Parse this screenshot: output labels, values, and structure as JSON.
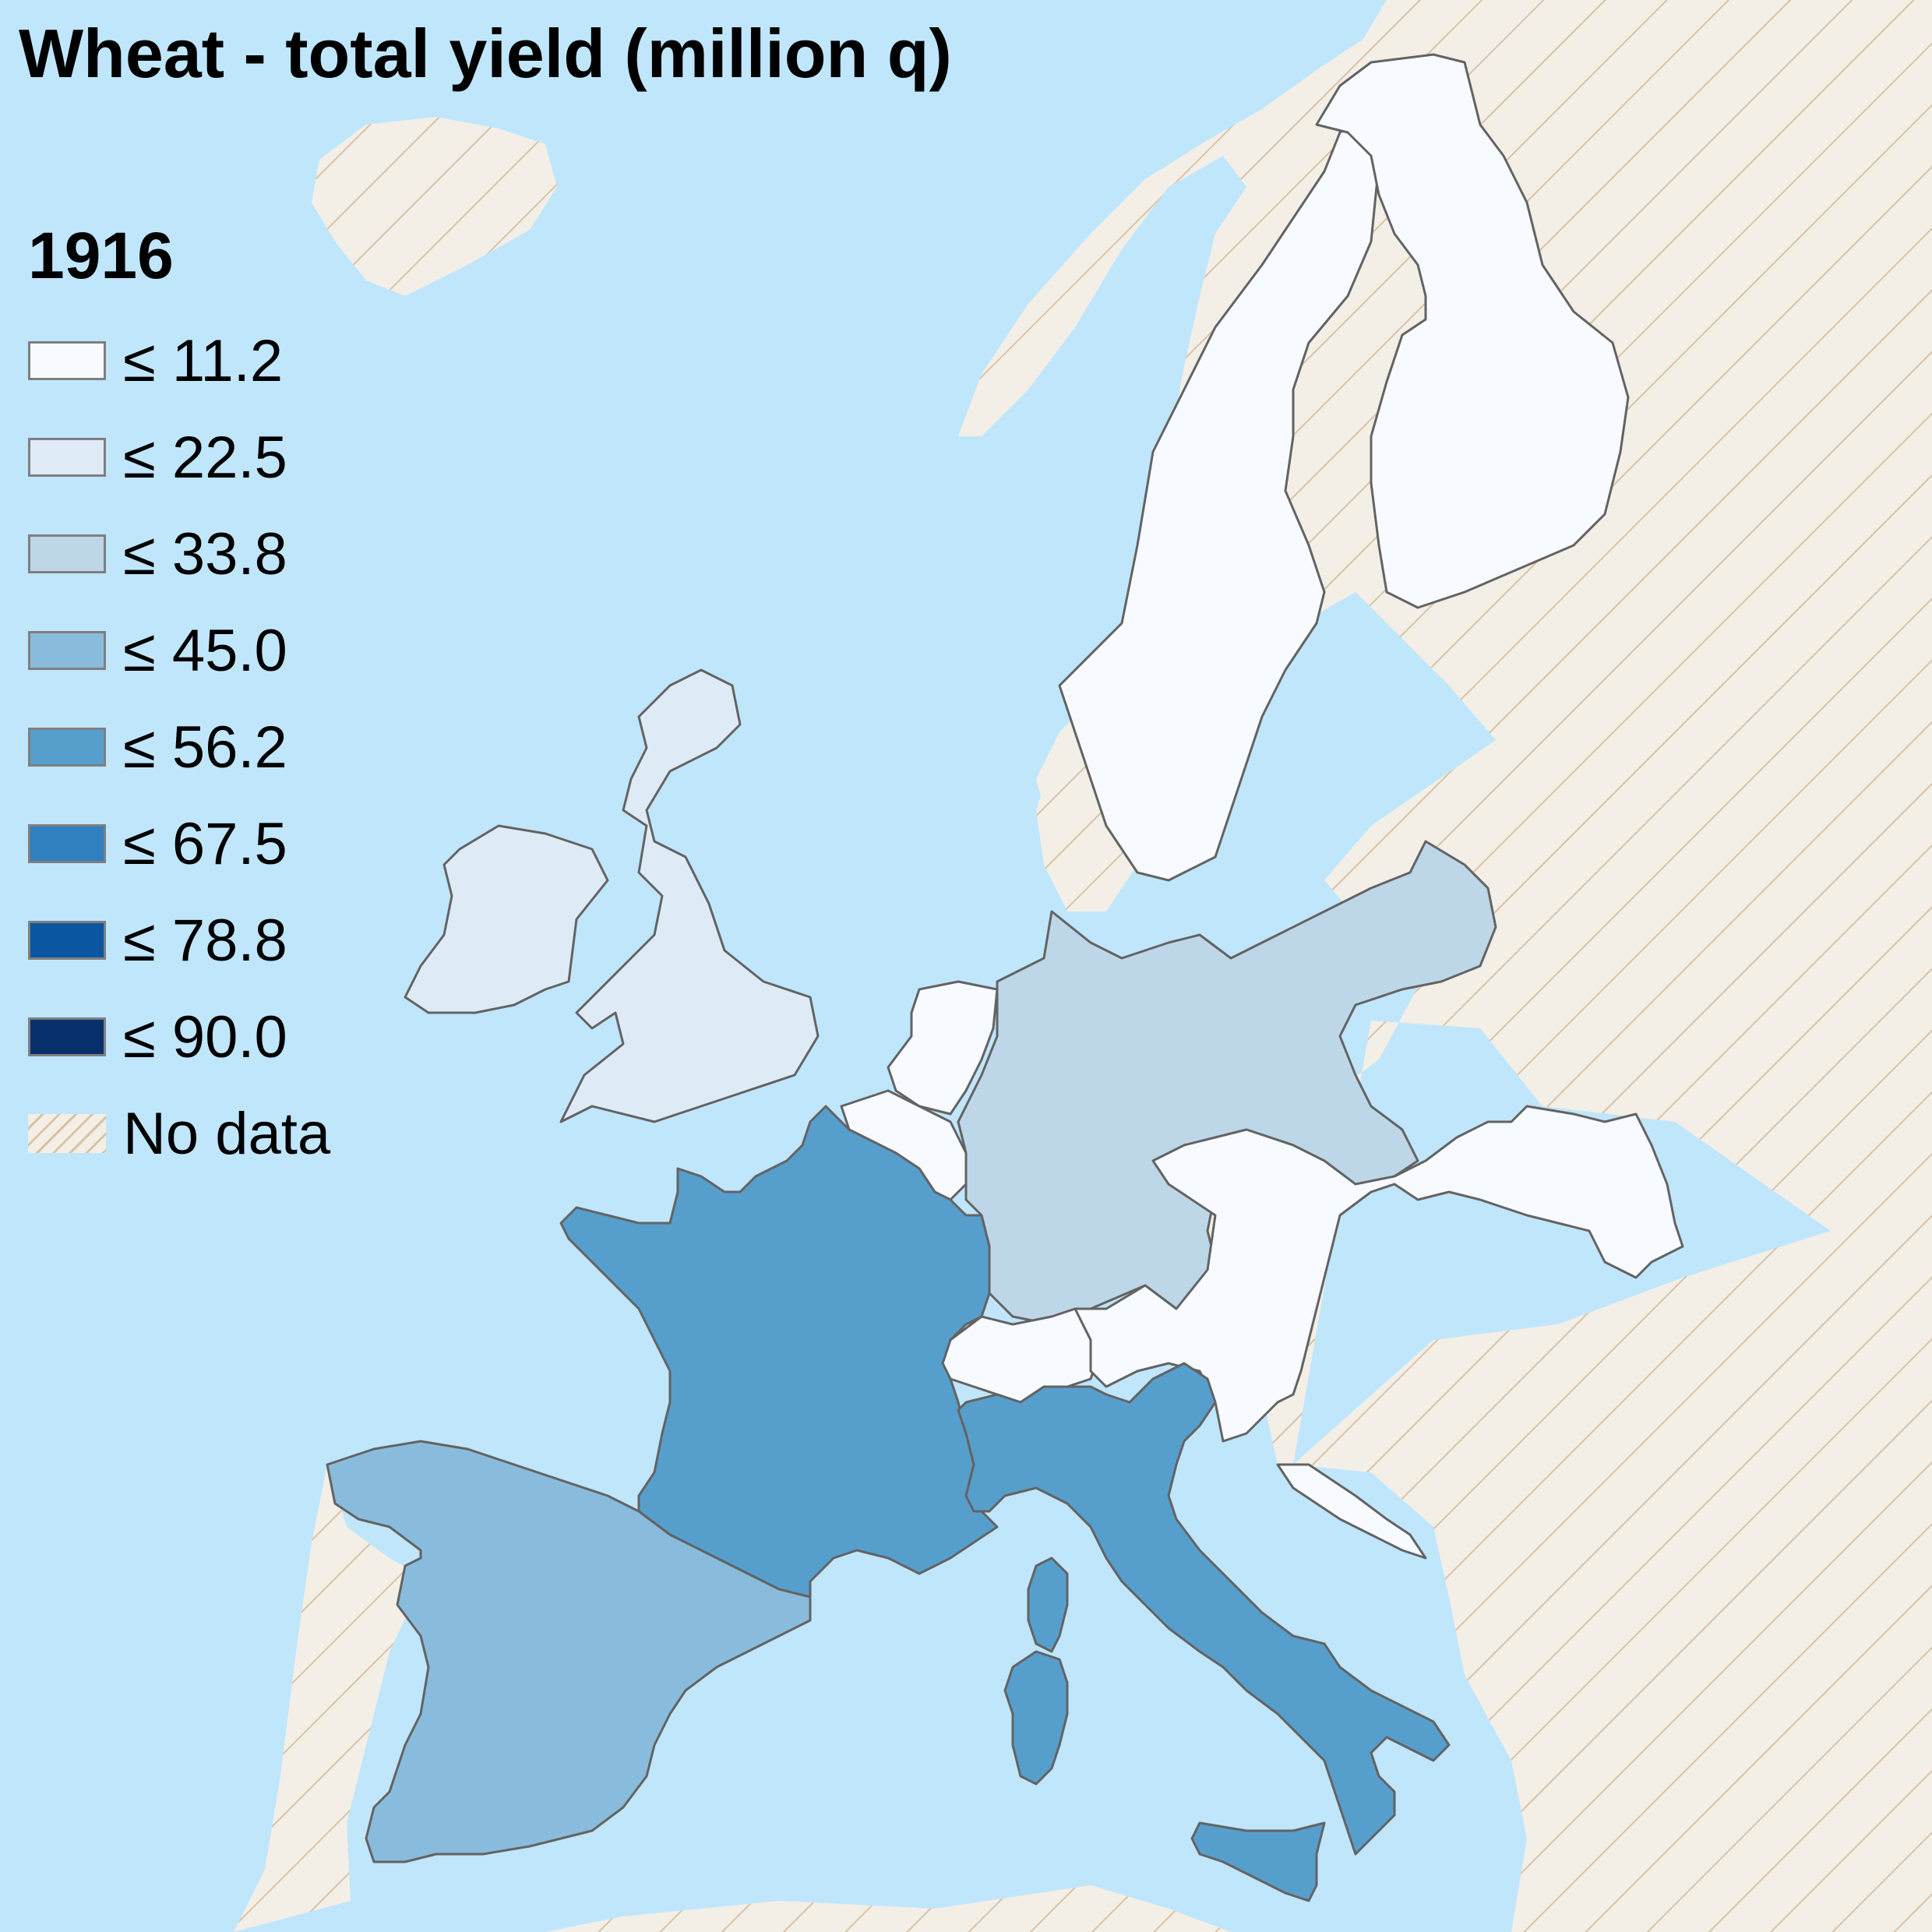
{
  "title": "Wheat - total yield (million q)",
  "year": "1916",
  "colors": {
    "sea": "#c0e6fc",
    "nodata_fill": "#f3efe7",
    "nodata_hatch": "#d9c3a5",
    "border": "#636363"
  },
  "legend": [
    {
      "label": "≤ 11.2",
      "color": "#f7fbff"
    },
    {
      "label": "≤ 22.5",
      "color": "#deebf7"
    },
    {
      "label": "≤ 33.8",
      "color": "#bdd7e9"
    },
    {
      "label": "≤ 45.0",
      "color": "#89bcdc"
    },
    {
      "label": "≤ 56.2",
      "color": "#569fcd"
    },
    {
      "label": "≤ 67.5",
      "color": "#2f7fc1"
    },
    {
      "label": "≤ 78.8",
      "color": "#0a56a0"
    },
    {
      "label": "≤ 90.0",
      "color": "#072f6b"
    },
    {
      "label": "No data",
      "color": "hatch"
    }
  ],
  "regions": [
    {
      "name": "Sweden",
      "class": "≤ 11.2"
    },
    {
      "name": "Finland",
      "class": "≤ 11.2"
    },
    {
      "name": "Netherlands",
      "class": "≤ 11.2"
    },
    {
      "name": "Belgium",
      "class": "≤ 11.2"
    },
    {
      "name": "Switzerland",
      "class": "≤ 11.2"
    },
    {
      "name": "Austria-Hungary",
      "class": "≤ 11.2"
    },
    {
      "name": "United Kingdom",
      "class": "≤ 22.5"
    },
    {
      "name": "Ireland",
      "class": "≤ 22.5"
    },
    {
      "name": "Germany",
      "class": "≤ 33.8"
    },
    {
      "name": "Spain",
      "class": "≤ 45.0"
    },
    {
      "name": "France",
      "class": "≤ 56.2"
    },
    {
      "name": "Italy",
      "class": "≤ 56.2"
    }
  ]
}
